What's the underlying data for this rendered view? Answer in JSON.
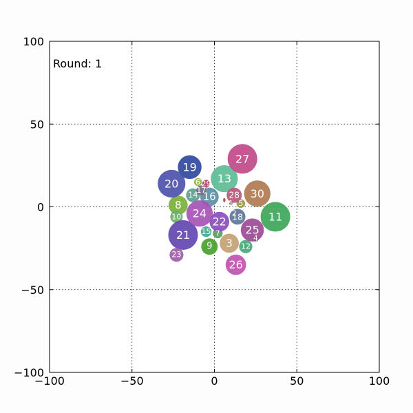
{
  "chart_data": {
    "type": "scatter",
    "title": "",
    "annotation": "Round: 1",
    "xlabel": "",
    "ylabel": "",
    "xlim": [
      -100,
      100
    ],
    "ylim": [
      -100,
      100
    ],
    "xticks": [
      -100,
      -50,
      0,
      50,
      100
    ],
    "yticks": [
      -100,
      -50,
      0,
      50,
      100
    ],
    "xtick_labels": [
      "−100",
      "−50",
      "0",
      "50",
      "100"
    ],
    "ytick_labels": [
      "−100",
      "−50",
      "0",
      "50",
      "100"
    ],
    "grid": true,
    "points": [
      {
        "label": "0",
        "x": 6,
        "y": 4,
        "r": 1.2,
        "color": "#a04545"
      },
      {
        "label": "1",
        "x": 10,
        "y": 2,
        "r": 1.0,
        "color": "#8a7a55"
      },
      {
        "label": "2",
        "x": 12,
        "y": -4,
        "r": 1.2,
        "color": "#7aa0c0"
      },
      {
        "label": "3",
        "x": 9,
        "y": -22,
        "r": 5.8,
        "color": "#c4a074"
      },
      {
        "label": "4",
        "x": 25,
        "y": -19,
        "r": 2.0,
        "color": "#8c79b8"
      },
      {
        "label": "5",
        "x": 16,
        "y": 2,
        "r": 2.6,
        "color": "#9a9a3a"
      },
      {
        "label": "6",
        "x": -10,
        "y": 15,
        "r": 2.4,
        "color": "#9ab840"
      },
      {
        "label": "7",
        "x": 2,
        "y": -16,
        "r": 3.0,
        "color": "#5aa060"
      },
      {
        "label": "8",
        "x": -22,
        "y": 1,
        "r": 5.8,
        "color": "#7ab03c"
      },
      {
        "label": "9",
        "x": -3,
        "y": -24,
        "r": 5.0,
        "color": "#48a02c"
      },
      {
        "label": "10",
        "x": -23,
        "y": -6,
        "r": 3.8,
        "color": "#6ab068"
      },
      {
        "label": "11",
        "x": 37,
        "y": -6,
        "r": 9.0,
        "color": "#3ea65a"
      },
      {
        "label": "12",
        "x": 19,
        "y": -24,
        "r": 4.0,
        "color": "#48a878"
      },
      {
        "label": "13",
        "x": 6,
        "y": 17,
        "r": 8.2,
        "color": "#5cbc96"
      },
      {
        "label": "14",
        "x": -13,
        "y": 7,
        "r": 4.2,
        "color": "#5e9e8e"
      },
      {
        "label": "15",
        "x": -5,
        "y": -15,
        "r": 3.2,
        "color": "#46a890"
      },
      {
        "label": "16",
        "x": -3,
        "y": 6,
        "r": 5.6,
        "color": "#5e8ea6"
      },
      {
        "label": "17",
        "x": -8,
        "y": 10,
        "r": 3.0,
        "color": "#7a6e8a"
      },
      {
        "label": "18",
        "x": 14,
        "y": -6,
        "r": 4.8,
        "color": "#5e7698"
      },
      {
        "label": "19",
        "x": -15,
        "y": 24,
        "r": 7.2,
        "color": "#3048a0"
      },
      {
        "label": "20",
        "x": -26,
        "y": 14,
        "r": 8.4,
        "color": "#4e52ac"
      },
      {
        "label": "21",
        "x": -19,
        "y": -17,
        "r": 9.0,
        "color": "#6246b0"
      },
      {
        "label": "22",
        "x": 3,
        "y": -9,
        "r": 6.0,
        "color": "#8a4ec0"
      },
      {
        "label": "23",
        "x": -23,
        "y": -29,
        "r": 4.2,
        "color": "#9e5ea8"
      },
      {
        "label": "24",
        "x": -9,
        "y": -4,
        "r": 8.0,
        "color": "#a652b6"
      },
      {
        "label": "25",
        "x": 23,
        "y": -14,
        "r": 7.0,
        "color": "#9c4a96"
      },
      {
        "label": "26",
        "x": 13,
        "y": -35,
        "r": 6.2,
        "color": "#c052b0"
      },
      {
        "label": "27",
        "x": 17,
        "y": 29,
        "r": 9.0,
        "color": "#c04a8a"
      },
      {
        "label": "28",
        "x": 12,
        "y": 7,
        "r": 4.6,
        "color": "#b85878"
      },
      {
        "label": "29",
        "x": -5,
        "y": 14,
        "r": 2.4,
        "color": "#b04060"
      },
      {
        "label": "30",
        "x": 26,
        "y": 8,
        "r": 8.0,
        "color": "#b07a50"
      }
    ]
  }
}
